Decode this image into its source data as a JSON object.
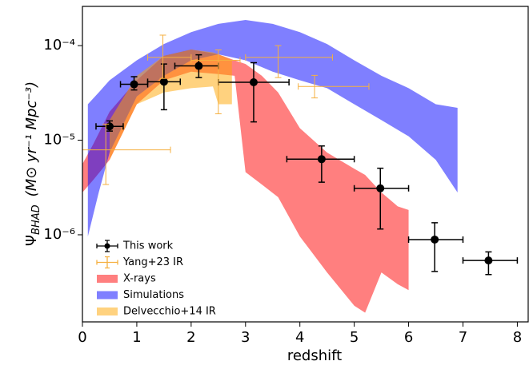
{
  "chart_data": {
    "type": "band-errorbar",
    "x_label": "redshift",
    "y_label": {
      "symbol": "Ψ",
      "subscript": "BHAD",
      "units": "(M⊙ yr⁻¹ Mpc⁻³)"
    },
    "xlim": [
      0,
      8.2
    ],
    "xticks": [
      0,
      1,
      2,
      3,
      4,
      5,
      6,
      7,
      8
    ],
    "yscale": "log",
    "ylim": [
      1.2e-07,
      0.00026
    ],
    "yticks": [
      {
        "value": 1e-06,
        "label": "10⁻⁶"
      },
      {
        "value": 1e-05,
        "label": "10⁻⁵"
      },
      {
        "value": 0.0001,
        "label": "10⁻⁴"
      }
    ],
    "legend": "lower left",
    "points": [
      {
        "name": "This work",
        "color": "#000000",
        "marker": "o",
        "x": [
          0.5,
          0.95,
          1.5,
          2.14,
          3.15,
          4.4,
          5.48,
          6.48,
          7.47
        ],
        "x_low": [
          0.25,
          0.7,
          1.2,
          1.7,
          2.5,
          3.76,
          5.0,
          6.0,
          7.0
        ],
        "x_high": [
          0.75,
          1.2,
          1.8,
          2.5,
          3.8,
          5.0,
          6.0,
          7.0,
          8.0
        ],
        "y": [
          1.4e-05,
          3.9e-05,
          4.15e-05,
          6.1e-05,
          4.1e-05,
          6.3e-06,
          3.1e-06,
          8.9e-07,
          5.35e-07
        ],
        "y_low": [
          1.25e-05,
          3.4e-05,
          2.1e-05,
          4.6e-05,
          1.56e-05,
          3.6e-06,
          1.15e-06,
          4.1e-07,
          3.8e-07
        ],
        "y_high": [
          1.6e-05,
          4.7e-05,
          6.4e-05,
          8e-05,
          6.6e-05,
          8.7e-06,
          5.05e-06,
          1.34e-06,
          6.6e-07
        ]
      },
      {
        "name": "Yang+23 IR",
        "color": "#f5b041",
        "marker": "none",
        "x": [
          0.43,
          1.48,
          2.5,
          3.6,
          4.27
        ],
        "x_low": [
          0.0,
          1.2,
          2.0,
          3.0,
          3.97
        ],
        "x_high": [
          1.62,
          2.0,
          2.9,
          4.6,
          5.27
        ],
        "y": [
          7.9e-06,
          7.5e-05,
          7e-05,
          7.5e-05,
          3.7e-05
        ],
        "y_low": [
          3.4e-06,
          4.5e-05,
          1.9e-05,
          4.6e-05,
          2.8e-05
        ],
        "y_high": [
          1.48e-05,
          0.000129,
          9e-05,
          0.0001,
          4.85e-05
        ]
      }
    ],
    "bands": [
      {
        "name": "X-rays",
        "color": "#ff0000",
        "x": [
          0,
          0.2,
          0.5,
          1.0,
          1.5,
          2.0,
          2.5,
          2.8,
          3.0,
          3.3,
          3.6,
          4.0,
          4.5,
          5.0,
          5.2,
          5.5,
          5.8,
          6.0
        ],
        "upper": [
          5.6e-06,
          9.1e-06,
          2e-05,
          4.3e-05,
          7.8e-05,
          9.1e-05,
          8.1e-05,
          7e-05,
          6.4e-05,
          4.8e-05,
          3.2e-05,
          1.34e-05,
          7.4e-06,
          5e-06,
          4.3e-06,
          2.8e-06,
          2e-06,
          1.83e-06
        ],
        "lower": [
          2.8e-06,
          3.8e-06,
          6.2e-06,
          2.4e-05,
          4.3e-05,
          5.3e-05,
          5e-05,
          4.8e-05,
          4.6e-06,
          3.4e-06,
          2.5e-06,
          9.6e-07,
          4e-07,
          1.78e-07,
          1.5e-07,
          4e-07,
          3e-07,
          2.6e-07
        ]
      },
      {
        "name": "Simulations",
        "color": "#0000ff",
        "x": [
          0.1,
          0.3,
          0.5,
          1.0,
          1.5,
          2.0,
          2.5,
          3.0,
          3.5,
          4.0,
          4.5,
          5.0,
          5.5,
          6.0,
          6.5,
          6.9
        ],
        "upper": [
          2.4e-05,
          3.2e-05,
          4.3e-05,
          7e-05,
          0.000104,
          0.000139,
          0.00017,
          0.000187,
          0.00017,
          0.000139,
          0.000104,
          7e-05,
          4.8e-05,
          3.55e-05,
          2.4e-05,
          2.2e-05
        ],
        "lower": [
          9.6e-07,
          2.8e-06,
          7.4e-06,
          2.9e-05,
          4.8e-05,
          7e-05,
          8.1e-05,
          7e-05,
          5.3e-05,
          4.3e-05,
          3.55e-05,
          2.4e-05,
          1.63e-05,
          1.1e-05,
          6.2e-06,
          2.8e-06
        ]
      },
      {
        "name": "Delvecchio+14 IR",
        "color": "#ffa500",
        "x": [
          0.5,
          1.0,
          1.5,
          2.0,
          2.4,
          2.5,
          2.75
        ],
        "upper": [
          1.63e-05,
          4.8e-05,
          7.8e-05,
          9.1e-05,
          8.5e-05,
          8.1e-05,
          7e-05
        ],
        "lower": [
          6.2e-06,
          2.4e-05,
          3.2e-05,
          3.55e-05,
          3.7e-05,
          2.4e-05,
          2.4e-05
        ]
      }
    ]
  }
}
